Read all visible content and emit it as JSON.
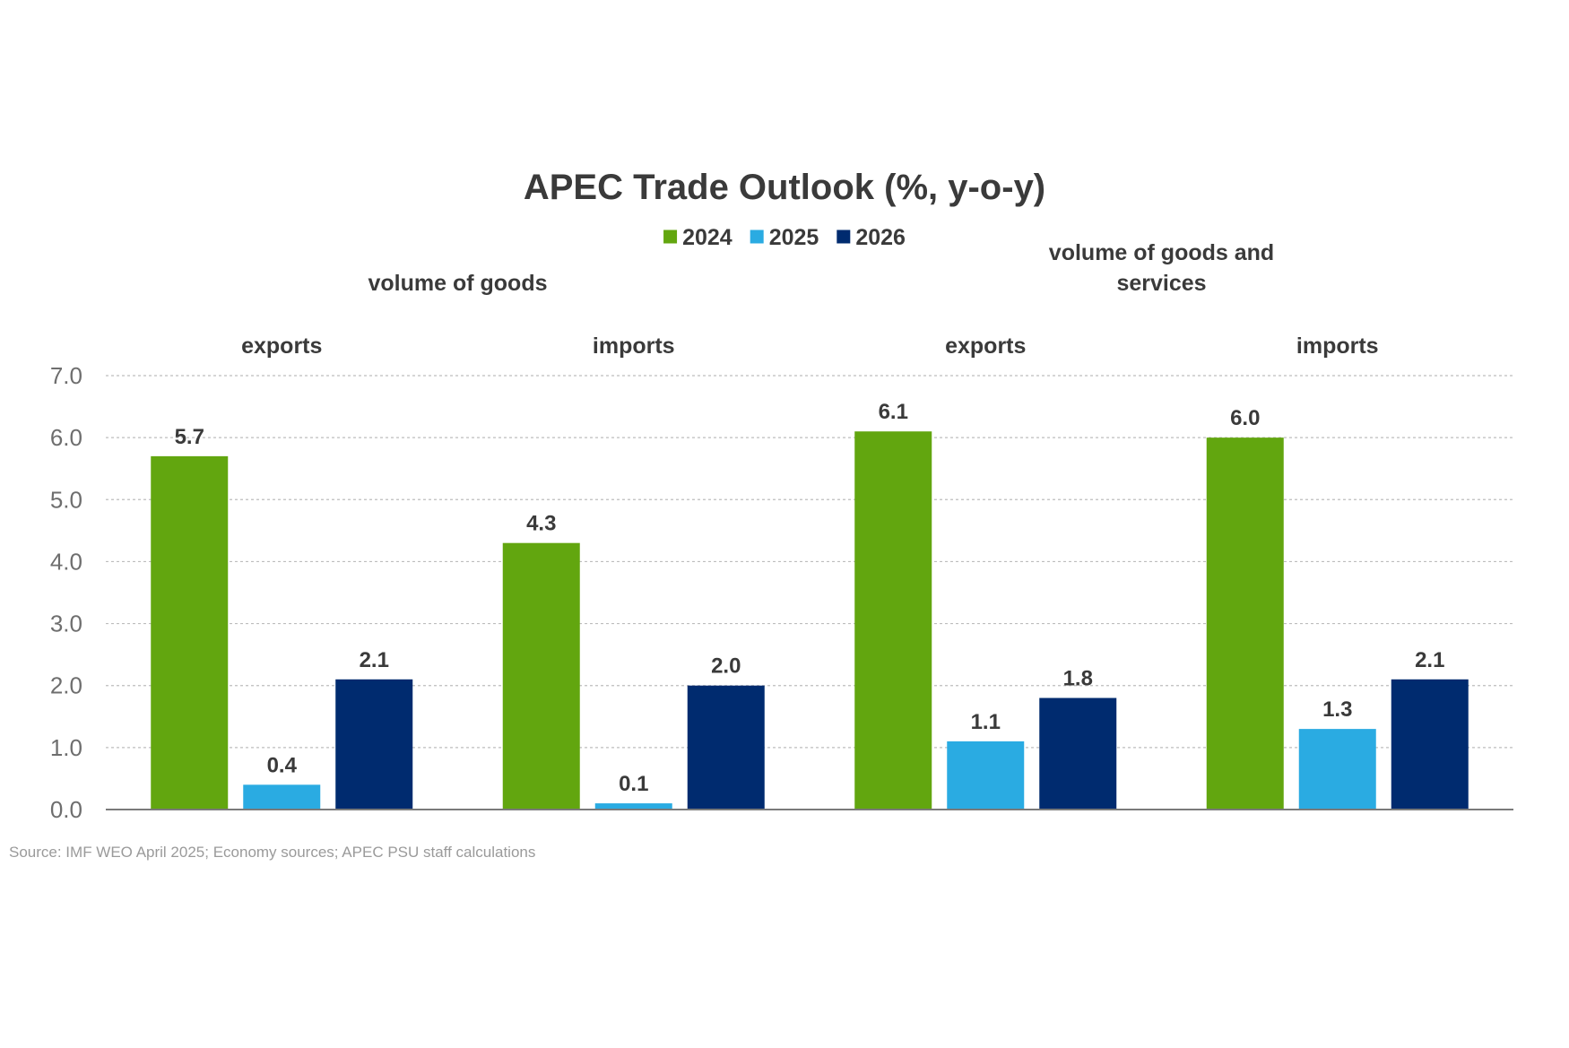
{
  "chart_data": {
    "type": "bar",
    "title": "APEC Trade Outlook (%, y-o-y)",
    "groups": [
      {
        "label_lines": [
          "volume of goods"
        ],
        "categories": [
          0,
          1
        ]
      },
      {
        "label_lines": [
          "volume of goods and",
          "services"
        ],
        "categories": [
          2,
          3
        ]
      }
    ],
    "categories": [
      "exports",
      "imports",
      "exports",
      "imports"
    ],
    "series": [
      {
        "name": "2024",
        "color": "#62a60f",
        "values": [
          5.7,
          4.3,
          6.1,
          6.0
        ]
      },
      {
        "name": "2025",
        "color": "#2aabe2",
        "values": [
          0.4,
          0.1,
          1.1,
          1.3
        ]
      },
      {
        "name": "2026",
        "color": "#002b6f",
        "values": [
          2.1,
          2.0,
          1.8,
          2.1
        ]
      }
    ],
    "yticks": [
      "0.0",
      "1.0",
      "2.0",
      "3.0",
      "4.0",
      "5.0",
      "6.0",
      "7.0"
    ],
    "ylim": [
      0,
      7
    ],
    "grid": true,
    "legend_position": "top-center",
    "source": "Source: IMF WEO April 2025; Economy sources; APEC PSU staff calculations"
  }
}
